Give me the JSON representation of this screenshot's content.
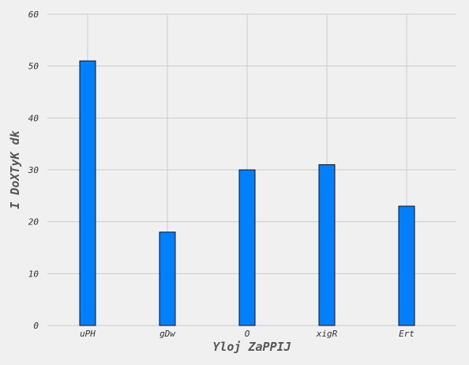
{
  "chart_data": {
    "type": "bar",
    "categories": [
      "uPH",
      "gDw",
      "O",
      "xigR",
      "Ert"
    ],
    "values": [
      51,
      18,
      30,
      31,
      23
    ],
    "title": "",
    "xlabel": "Yloj ZaPPIJ",
    "ylabel": "I DoXTyK dk",
    "ylim": [
      0,
      60
    ],
    "yticks": [
      0,
      10,
      20,
      30,
      40,
      50,
      60
    ],
    "grid": true,
    "colors": {
      "bar_fill": "#0080ff",
      "bar_stroke": "#111111",
      "grid": "#cbcbcb",
      "background": "#f0f0f0"
    }
  }
}
